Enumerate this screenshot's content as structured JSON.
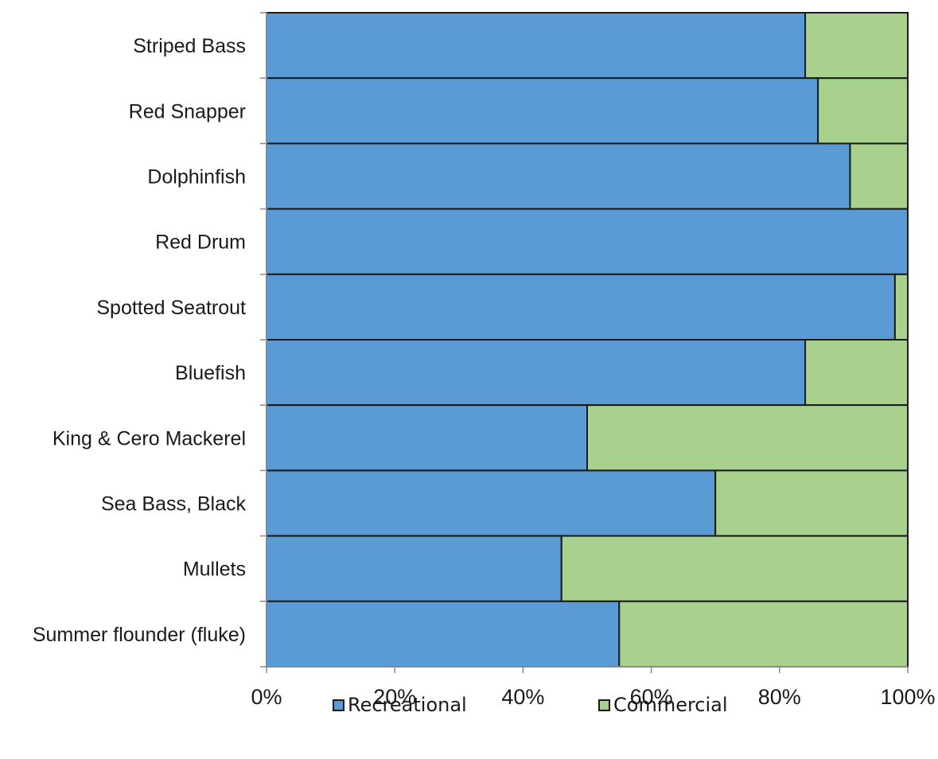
{
  "chart_data": {
    "type": "bar",
    "orientation": "horizontal",
    "stacked": "percent",
    "categories": [
      "Striped Bass",
      "Red Snapper",
      "Dolphinfish",
      "Red Drum",
      "Spotted Seatrout",
      "Bluefish",
      "King & Cero Mackerel",
      "Sea Bass, Black",
      "Mullets",
      "Summer flounder (fluke)"
    ],
    "series": [
      {
        "name": "Recreational",
        "color": "#5b9bd5",
        "values": [
          84,
          86,
          91,
          100,
          98,
          84,
          50,
          70,
          46,
          55
        ]
      },
      {
        "name": "Commercial",
        "color": "#a9d18e",
        "values": [
          16,
          14,
          9,
          0,
          2,
          16,
          50,
          30,
          54,
          45
        ]
      }
    ],
    "x_ticks": [
      "0%",
      "20%",
      "40%",
      "60%",
      "80%",
      "100%"
    ],
    "xlim": [
      0,
      100
    ],
    "grid": false,
    "legend_position": "bottom",
    "title": "",
    "xlabel": "",
    "ylabel": ""
  }
}
